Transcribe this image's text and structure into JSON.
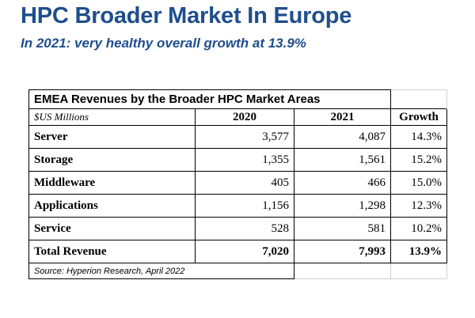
{
  "slide": {
    "title": "HPC Broader Market In Europe",
    "subtitle": "In 2021: very healthy overall growth at 13.9%"
  },
  "table": {
    "caption": "EMEA Revenues by the Broader HPC Market Areas",
    "units_label": "$US Millions",
    "headers": [
      "2020",
      "2021",
      "Growth"
    ],
    "rows": [
      {
        "label": "Server",
        "y2020": "3,577",
        "y2021": "4,087",
        "growth": "14.3%"
      },
      {
        "label": "Storage",
        "y2020": "1,355",
        "y2021": "1,561",
        "growth": "15.2%"
      },
      {
        "label": "Middleware",
        "y2020": "405",
        "y2021": "466",
        "growth": "15.0%"
      },
      {
        "label": "Applications",
        "y2020": "1,156",
        "y2021": "1,298",
        "growth": "12.3%"
      },
      {
        "label": "Service",
        "y2020": "528",
        "y2021": "581",
        "growth": "10.2%"
      },
      {
        "label": "Total Revenue",
        "y2020": "7,020",
        "y2021": "7,993",
        "growth": "13.9%"
      }
    ],
    "source": "Source: Hyperion Research, April 2022"
  }
}
